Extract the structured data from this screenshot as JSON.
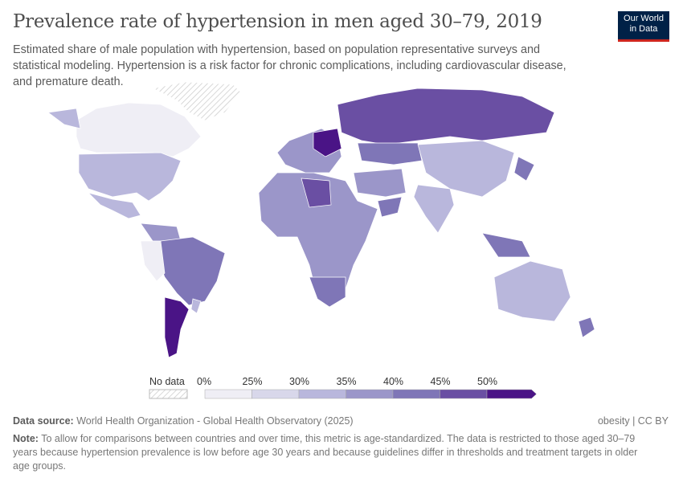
{
  "header": {
    "title": "Prevalence rate of hypertension in men aged 30–79, 2019",
    "subtitle": "Estimated share of male population with hypertension, based on population representative surveys and statistical modeling. Hypertension is a risk factor for chronic complications, including cardiovascular disease, and premature death.",
    "logo_line1": "Our World",
    "logo_line2": "in Data"
  },
  "legend": {
    "no_data_label": "No data",
    "ticks": [
      "0%",
      "25%",
      "30%",
      "35%",
      "40%",
      "45%",
      "50%"
    ],
    "colors": [
      "#efeef5",
      "#d8d7ea",
      "#b9b7dc",
      "#9b96c9",
      "#7f76b7",
      "#6a4fa3",
      "#4a1486"
    ],
    "no_data_color": "#e0e0e0"
  },
  "footer": {
    "source_label": "Data source:",
    "source_text": "World Health Organization - Global Health Observatory (2025)",
    "license": "obesity | CC BY",
    "note_label": "Note:",
    "note_text": "To allow for comparisons between countries and over time, this metric is age-standardized. The data is restricted to those aged 30–79 years because hypertension prevalence is low before age 30 years and because guidelines differ in thresholds and treatment targets in older age groups."
  }
}
